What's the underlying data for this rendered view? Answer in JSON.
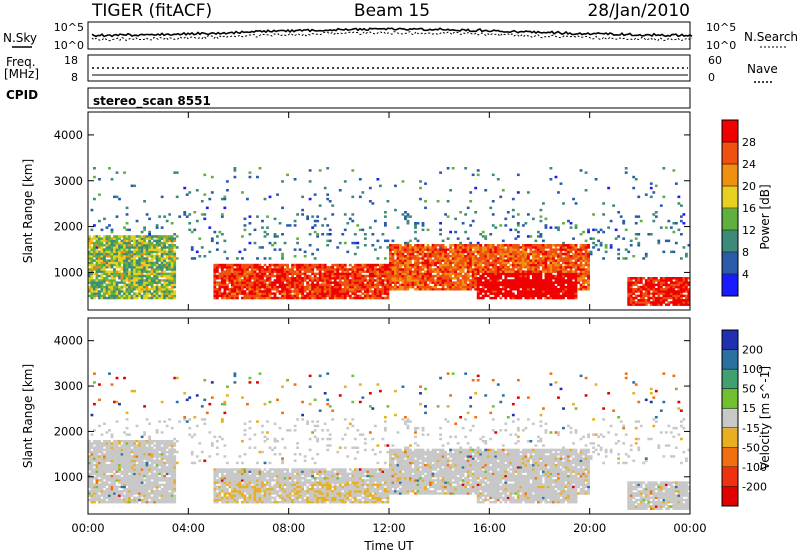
{
  "header": {
    "title": "TIGER (fitACF)",
    "beam": "Beam 15",
    "date": "28/Jan/2010"
  },
  "noise_panel": {
    "left_label": "N.Sky",
    "right_label": "N.Search",
    "tick_top": "10^5",
    "tick_bottom": "10^0"
  },
  "freq_panel": {
    "left_label_1": "Freq.",
    "left_label_2": "[MHz]",
    "right_label": "Nave",
    "left_ticks": [
      "18",
      "8"
    ],
    "right_ticks": [
      "60",
      "0"
    ]
  },
  "cpid_panel": {
    "label": "CPID",
    "text": "stereo_scan 8551"
  },
  "axes": {
    "ylabel": "Slant Range [km]",
    "xlabel": "Time UT",
    "y_ticks": [
      "1000",
      "2000",
      "3000",
      "4000"
    ],
    "x_ticks": [
      "00:00",
      "04:00",
      "08:00",
      "12:00",
      "16:00",
      "20:00",
      "00:00"
    ]
  },
  "power_scale": {
    "label": "Power [dB]",
    "ticks": [
      "4",
      "8",
      "12",
      "16",
      "20",
      "24",
      "28"
    ],
    "colors": [
      "#1a1aff",
      "#2a5aaa",
      "#3c8a7a",
      "#60b040",
      "#e8d020",
      "#f09010",
      "#f05010",
      "#f00000"
    ]
  },
  "velocity_scale": {
    "label": "Velocity [m s^-1]",
    "ticks": [
      "200",
      "100",
      "50",
      "15",
      "-15",
      "-50",
      "-100",
      "-200"
    ],
    "colors": [
      "#2030b0",
      "#2a70a0",
      "#40a070",
      "#70c030",
      "#c8c8c8",
      "#e8b020",
      "#f07010",
      "#f03010",
      "#e00000"
    ]
  },
  "chart_data": {
    "type": "heatmap",
    "title": "TIGER (fitACF) Beam 15 28/Jan/2010",
    "xlabel": "Time UT",
    "ylabel": "Slant Range [km]",
    "xlim": [
      "00:00",
      "24:00"
    ],
    "ylim": [
      180,
      4500
    ],
    "panels": [
      {
        "name": "Power",
        "unit": "dB",
        "color_ticks": [
          4,
          8,
          12,
          16,
          20,
          24,
          28
        ],
        "color_range": [
          0,
          30
        ],
        "dominant_regions": [
          {
            "time": "00:00-03:30",
            "range_km": [
              400,
              1800
            ],
            "value_dB": [
              8,
              20
            ]
          },
          {
            "time": "05:00-12:00",
            "range_km": [
              400,
              1200
            ],
            "value_dB": [
              22,
              30
            ]
          },
          {
            "time": "12:00-20:00",
            "range_km": [
              600,
              1600
            ],
            "value_dB": [
              20,
              28
            ]
          },
          {
            "time": "15:30-19:30",
            "range_km": [
              400,
              1000
            ],
            "value_dB": [
              26,
              30
            ]
          },
          {
            "time": "21:30-24:00",
            "range_km": [
              300,
              900
            ],
            "value_dB": [
              24,
              30
            ]
          }
        ]
      },
      {
        "name": "Velocity",
        "unit": "m s^-1",
        "color_ticks": [
          200,
          100,
          50,
          15,
          -15,
          -50,
          -100,
          -200
        ],
        "color_range": [
          -250,
          250
        ],
        "dominant_regions": [
          {
            "time": "00:00-24:00",
            "range_km": [
              300,
              1800
            ],
            "value_ms": [
              -15,
              15
            ]
          },
          {
            "time": "04:00-12:00",
            "range_km": [
              200,
              900
            ],
            "value_ms": [
              -50,
              0
            ]
          }
        ]
      }
    ]
  }
}
